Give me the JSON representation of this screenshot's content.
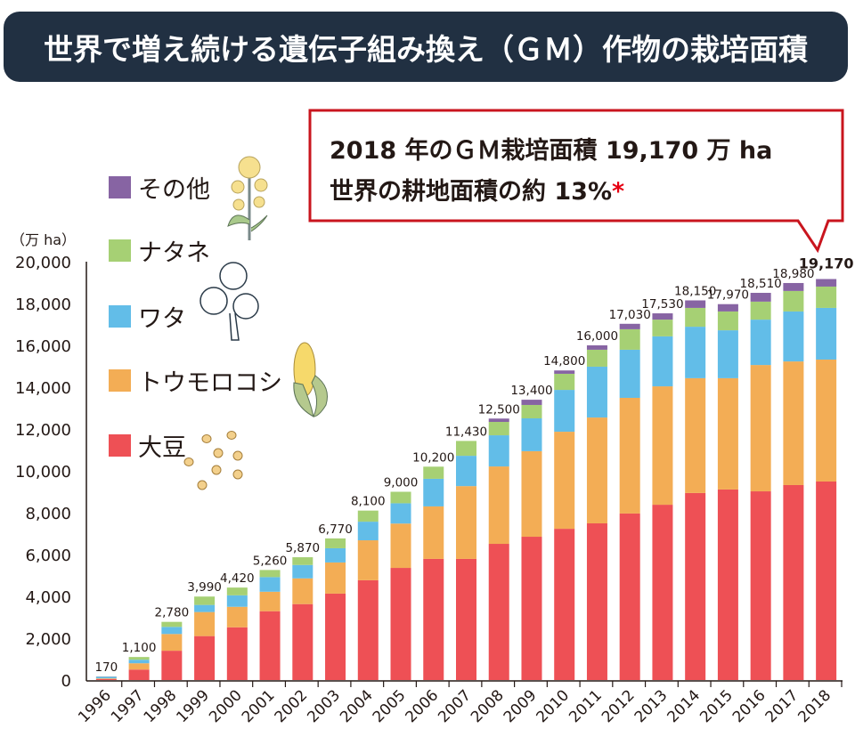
{
  "title": "世界で増え続ける遺伝子組み換え（ＧＭ）作物の栽培面積",
  "callout": {
    "line1": "2018 年のＧＭ栽培面積 19,170 万 ha",
    "line2": "世界の耕地面積の約 13%",
    "asterisk": "*"
  },
  "colors": {
    "title_bg": "#213042",
    "callout_border": "#c9151e",
    "soy": "#ee5055",
    "corn": "#f3ad55",
    "cotton": "#62bde8",
    "canola": "#a6d074",
    "other": "#8764a3"
  },
  "legend": [
    {
      "key": "other",
      "label": "その他",
      "icon": "rapeseed-flower-icon"
    },
    {
      "key": "canola",
      "label": "ナタネ",
      "icon": "cotton-boll-icon"
    },
    {
      "key": "cotton",
      "label": "ワタ",
      "icon": "cotton-boll-icon"
    },
    {
      "key": "corn",
      "label": "トウモロコシ",
      "icon": "corn-cob-icon"
    },
    {
      "key": "soy",
      "label": "大豆",
      "icon": "soybeans-icon"
    }
  ],
  "chart_data": {
    "type": "bar",
    "stacked": true,
    "title": "世界で増え続ける遺伝子組み換え（ＧＭ）作物の栽培面積",
    "xlabel": "",
    "ylabel": "（万 ha）",
    "ylim": [
      0,
      20000
    ],
    "yticks": [
      "0",
      "2,000",
      "4,000",
      "6,000",
      "8,000",
      "10,000",
      "12,000",
      "14,000",
      "16,000",
      "18,000",
      "20,000"
    ],
    "ytick_values": [
      0,
      2000,
      4000,
      6000,
      8000,
      10000,
      12000,
      14000,
      16000,
      18000,
      20000
    ],
    "grid": false,
    "legend_position": "top-left",
    "categories": [
      "1996",
      "1997",
      "1998",
      "1999",
      "2000",
      "2001",
      "2002",
      "2003",
      "2004",
      "2005",
      "2006",
      "2007",
      "2008",
      "2009",
      "2010",
      "2011",
      "2012",
      "2013",
      "2014",
      "2015",
      "2016",
      "2017",
      "2018"
    ],
    "totals": [
      170,
      1100,
      2780,
      3990,
      4420,
      5260,
      5870,
      6770,
      8100,
      9000,
      10200,
      11430,
      12500,
      13400,
      14800,
      16000,
      17030,
      17530,
      18150,
      17970,
      18510,
      18980,
      19170
    ],
    "total_labels": [
      "170",
      "1,100",
      "2,780",
      "3,990",
      "4,420",
      "5,260",
      "5,870",
      "6,770",
      "8,100",
      "9,000",
      "10,200",
      "11,430",
      "12,500",
      "13,400",
      "14,800",
      "16,000",
      "17,030",
      "17,530",
      "18,150",
      "17,970",
      "18,510",
      "18,980",
      "19,170"
    ],
    "series": [
      {
        "name": "大豆",
        "key": "soy",
        "values": [
          50,
          500,
          1400,
          2100,
          2520,
          3290,
          3630,
          4130,
          4770,
          5360,
          5790,
          5790,
          6510,
          6850,
          7230,
          7490,
          7960,
          8380,
          8940,
          9110,
          9020,
          9320,
          9490
        ]
      },
      {
        "name": "トウモロコシ",
        "key": "corn",
        "values": [
          30,
          300,
          800,
          1150,
          980,
          930,
          1230,
          1490,
          1910,
          2120,
          2510,
          3480,
          3700,
          4090,
          4640,
          5060,
          5530,
          5660,
          5490,
          5320,
          6040,
          5910,
          5830
        ]
      },
      {
        "name": "ワタ",
        "key": "cotton",
        "values": [
          70,
          170,
          340,
          340,
          550,
          700,
          640,
          680,
          890,
          970,
          1320,
          1450,
          1490,
          1570,
          2000,
          2430,
          2300,
          2390,
          2460,
          2290,
          2170,
          2390,
          2470
        ]
      },
      {
        "name": "ナタネ",
        "key": "canola",
        "values": [
          10,
          130,
          240,
          400,
          370,
          340,
          370,
          470,
          530,
          550,
          580,
          710,
          640,
          640,
          770,
          810,
          980,
          800,
          900,
          900,
          860,
          980,
          1020
        ]
      },
      {
        "name": "その他",
        "key": "other",
        "values": [
          10,
          0,
          0,
          0,
          0,
          0,
          0,
          0,
          0,
          0,
          0,
          0,
          160,
          250,
          160,
          210,
          260,
          300,
          360,
          350,
          420,
          380,
          360
        ]
      }
    ],
    "highlight": {
      "category": "2018",
      "label": "19,170"
    }
  }
}
